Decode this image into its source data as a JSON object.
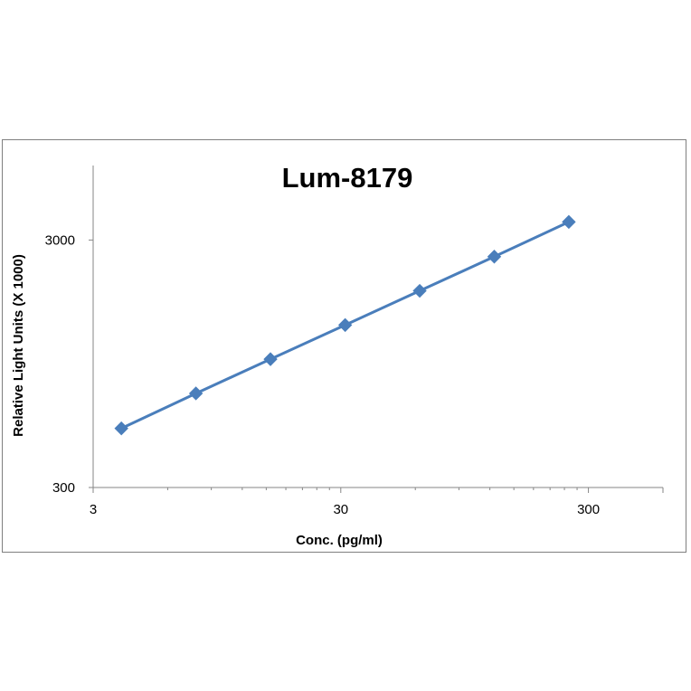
{
  "chart_data": {
    "type": "line",
    "title": "Lum-8179",
    "xlabel": "Conc. (pg/ml)",
    "ylabel": "Relative Light Units (X 1000)",
    "x_scale": "log",
    "y_scale": "log",
    "xlim": [
      3,
      600
    ],
    "ylim": [
      300,
      6000
    ],
    "x_ticks": [
      3,
      30,
      300
    ],
    "x_tick_labels": [
      "3",
      "30",
      "300"
    ],
    "y_ticks": [
      300,
      3000
    ],
    "y_tick_labels": [
      "300",
      "3000"
    ],
    "grid": false,
    "legend": "none",
    "series": [
      {
        "color": "#4a7ebb",
        "marker": "diamond",
        "x": [
          3.9,
          7.8,
          15.6,
          31.25,
          62.5,
          125,
          250
        ],
        "y": [
          520,
          720,
          990,
          1360,
          1870,
          2570,
          3550
        ]
      }
    ]
  }
}
